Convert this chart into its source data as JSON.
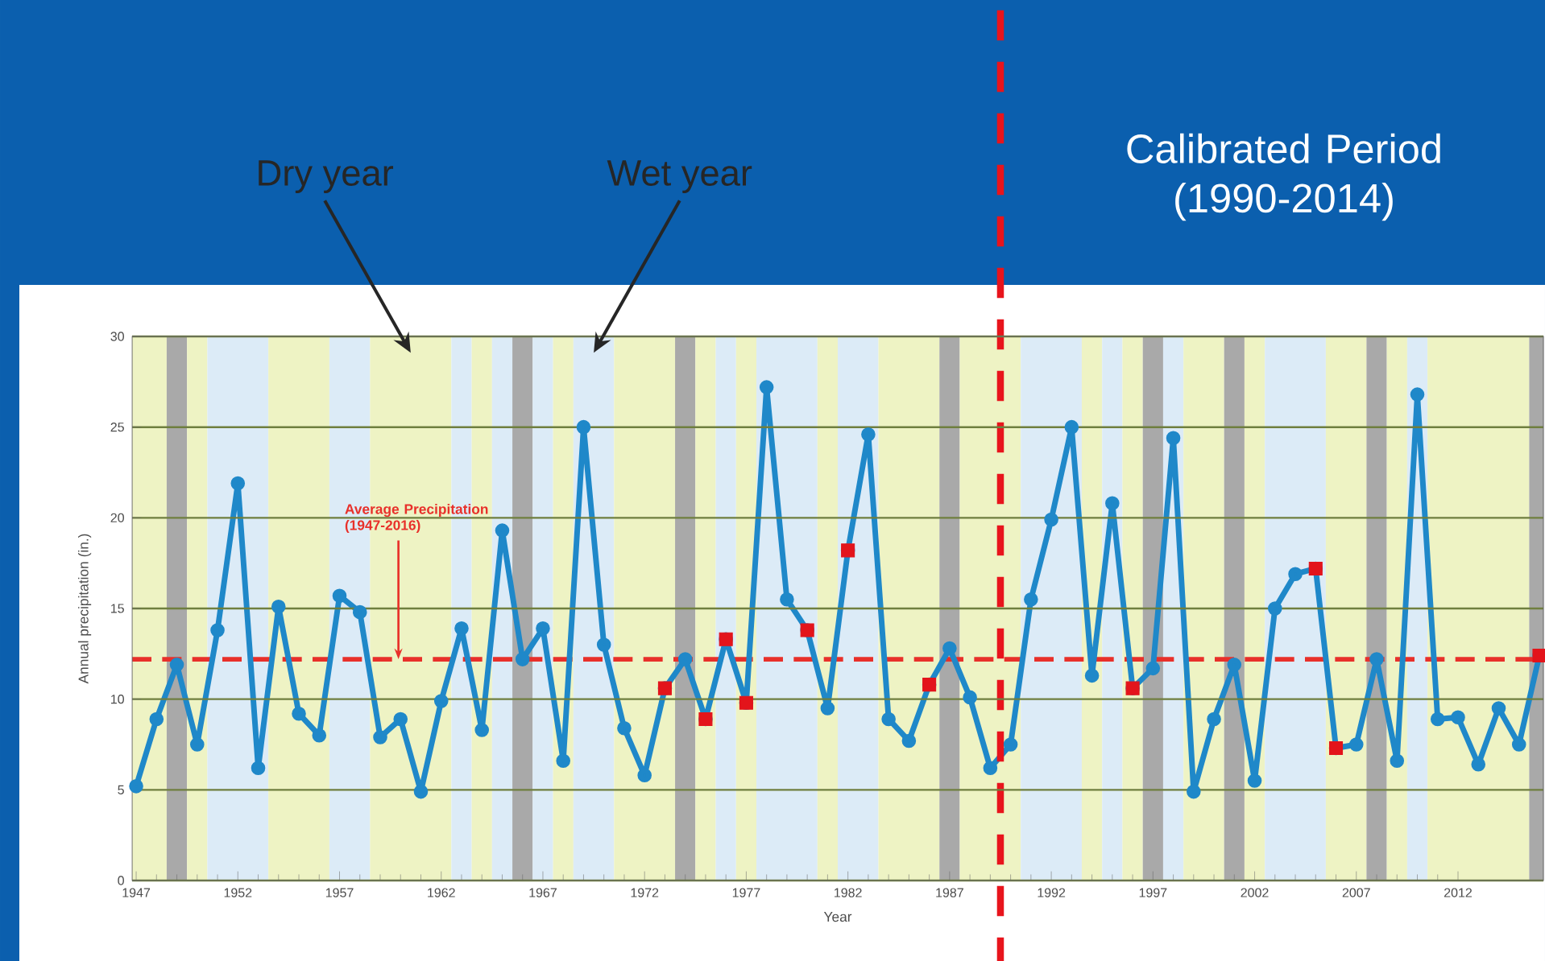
{
  "chart_data": {
    "type": "line",
    "xlabel": "Year",
    "ylabel": "Annual precipitation (in.)",
    "x": [
      1947,
      1948,
      1949,
      1950,
      1951,
      1952,
      1953,
      1954,
      1955,
      1956,
      1957,
      1958,
      1959,
      1960,
      1961,
      1962,
      1963,
      1964,
      1965,
      1966,
      1967,
      1968,
      1969,
      1970,
      1971,
      1972,
      1973,
      1974,
      1975,
      1976,
      1977,
      1978,
      1979,
      1980,
      1981,
      1982,
      1983,
      1984,
      1985,
      1986,
      1987,
      1988,
      1989,
      1990,
      1991,
      1992,
      1993,
      1994,
      1995,
      1996,
      1997,
      1998,
      1999,
      2000,
      2001,
      2002,
      2003,
      2004,
      2005,
      2006,
      2007,
      2008,
      2009,
      2010,
      2011,
      2012,
      2013,
      2014,
      2015,
      2016
    ],
    "series": [
      {
        "color": "#1f88c9",
        "marker": "circle",
        "values": [
          5.2,
          8.9,
          11.9,
          7.5,
          13.8,
          21.9,
          6.2,
          15.1,
          9.2,
          8.0,
          15.7,
          14.8,
          7.9,
          8.9,
          4.9,
          9.9,
          13.9,
          8.3,
          19.3,
          12.2,
          13.9,
          6.6,
          25.0,
          13.0,
          8.4,
          5.8,
          10.6,
          12.2,
          8.9,
          13.3,
          9.8,
          27.2,
          15.5,
          13.8,
          9.5,
          18.2,
          24.6,
          8.9,
          7.7,
          10.8,
          12.8,
          10.1,
          6.2,
          7.5,
          15.5,
          19.9,
          25.0,
          11.3,
          20.8,
          10.6,
          11.7,
          24.4,
          4.9,
          8.9,
          11.9,
          5.5,
          15.0,
          16.9,
          17.2,
          7.3,
          7.5,
          12.2,
          6.6,
          26.8,
          8.9,
          9.0,
          6.4,
          9.5,
          7.5,
          12.4
        ]
      },
      {
        "type": "scatter",
        "color": "#e3141b",
        "marker": "square",
        "x": [
          1973,
          1975,
          1976,
          1977,
          1980,
          1982,
          1986,
          1996,
          2005,
          2006,
          2016
        ],
        "values": [
          10.6,
          8.9,
          13.3,
          9.8,
          13.8,
          18.2,
          10.8,
          10.6,
          17.2,
          7.3,
          12.4
        ]
      }
    ],
    "xlim": [
      1946.8,
      2016.2
    ],
    "ylim": [
      0,
      30
    ],
    "xticks": [
      1947,
      1952,
      1957,
      1962,
      1967,
      1972,
      1977,
      1982,
      1987,
      1992,
      1997,
      2002,
      2007,
      2012
    ],
    "yticks": [
      0,
      5,
      10,
      15,
      20,
      25,
      30
    ],
    "grid": "y",
    "ref_lines": [
      {
        "axis": "y",
        "value": 12.2,
        "label": "Average Precipitation (1947-2016)",
        "color": "#e8302a",
        "line_style": "dashed"
      },
      {
        "axis": "x",
        "value": 1989.5,
        "color": "#e8141c",
        "line_style": "dashed"
      }
    ],
    "bands": [
      {
        "axis": "x",
        "from": 1946.8,
        "to": 1948.5,
        "color": "#eef3c4"
      },
      {
        "axis": "x",
        "from": 1948.5,
        "to": 1949.5,
        "color": "#a9a9a9"
      },
      {
        "axis": "x",
        "from": 1949.5,
        "to": 1950.5,
        "color": "#eef3c4"
      },
      {
        "axis": "x",
        "from": 1950.5,
        "to": 1953.5,
        "color": "#dcebf7"
      },
      {
        "axis": "x",
        "from": 1953.5,
        "to": 1956.5,
        "color": "#eef3c4"
      },
      {
        "axis": "x",
        "from": 1956.5,
        "to": 1958.5,
        "color": "#dcebf7"
      },
      {
        "axis": "x",
        "from": 1958.5,
        "to": 1962.5,
        "color": "#eef3c4",
        "label": "Dry year"
      },
      {
        "axis": "x",
        "from": 1962.5,
        "to": 1963.5,
        "color": "#dcebf7"
      },
      {
        "axis": "x",
        "from": 1963.5,
        "to": 1964.5,
        "color": "#eef3c4"
      },
      {
        "axis": "x",
        "from": 1964.5,
        "to": 1965.5,
        "color": "#dcebf7"
      },
      {
        "axis": "x",
        "from": 1965.5,
        "to": 1966.5,
        "color": "#a9a9a9"
      },
      {
        "axis": "x",
        "from": 1966.5,
        "to": 1967.5,
        "color": "#dcebf7"
      },
      {
        "axis": "x",
        "from": 1967.5,
        "to": 1968.5,
        "color": "#eef3c4"
      },
      {
        "axis": "x",
        "from": 1968.5,
        "to": 1970.5,
        "color": "#dcebf7",
        "label": "Wet year"
      },
      {
        "axis": "x",
        "from": 1970.5,
        "to": 1973.5,
        "color": "#eef3c4"
      },
      {
        "axis": "x",
        "from": 1973.5,
        "to": 1974.5,
        "color": "#a9a9a9"
      },
      {
        "axis": "x",
        "from": 1974.5,
        "to": 1975.5,
        "color": "#eef3c4"
      },
      {
        "axis": "x",
        "from": 1975.5,
        "to": 1976.5,
        "color": "#dcebf7"
      },
      {
        "axis": "x",
        "from": 1976.5,
        "to": 1977.5,
        "color": "#eef3c4"
      },
      {
        "axis": "x",
        "from": 1977.5,
        "to": 1980.5,
        "color": "#dcebf7"
      },
      {
        "axis": "x",
        "from": 1980.5,
        "to": 1981.5,
        "color": "#eef3c4"
      },
      {
        "axis": "x",
        "from": 1981.5,
        "to": 1983.5,
        "color": "#dcebf7"
      },
      {
        "axis": "x",
        "from": 1983.5,
        "to": 1986.5,
        "color": "#eef3c4"
      },
      {
        "axis": "x",
        "from": 1986.5,
        "to": 1987.5,
        "color": "#a9a9a9"
      },
      {
        "axis": "x",
        "from": 1987.5,
        "to": 1990.5,
        "color": "#eef3c4"
      },
      {
        "axis": "x",
        "from": 1990.5,
        "to": 1993.5,
        "color": "#dcebf7"
      },
      {
        "axis": "x",
        "from": 1993.5,
        "to": 1994.5,
        "color": "#eef3c4"
      },
      {
        "axis": "x",
        "from": 1994.5,
        "to": 1995.5,
        "color": "#dcebf7"
      },
      {
        "axis": "x",
        "from": 1995.5,
        "to": 1996.5,
        "color": "#eef3c4"
      },
      {
        "axis": "x",
        "from": 1996.5,
        "to": 1997.5,
        "color": "#a9a9a9"
      },
      {
        "axis": "x",
        "from": 1997.5,
        "to": 1998.5,
        "color": "#dcebf7"
      },
      {
        "axis": "x",
        "from": 1998.5,
        "to": 2000.5,
        "color": "#eef3c4"
      },
      {
        "axis": "x",
        "from": 2000.5,
        "to": 2001.5,
        "color": "#a9a9a9"
      },
      {
        "axis": "x",
        "from": 2001.5,
        "to": 2002.5,
        "color": "#eef3c4"
      },
      {
        "axis": "x",
        "from": 2002.5,
        "to": 2005.5,
        "color": "#dcebf7"
      },
      {
        "axis": "x",
        "from": 2005.5,
        "to": 2007.5,
        "color": "#eef3c4"
      },
      {
        "axis": "x",
        "from": 2007.5,
        "to": 2008.5,
        "color": "#a9a9a9"
      },
      {
        "axis": "x",
        "from": 2008.5,
        "to": 2009.5,
        "color": "#eef3c4"
      },
      {
        "axis": "x",
        "from": 2009.5,
        "to": 2010.5,
        "color": "#dcebf7"
      },
      {
        "axis": "x",
        "from": 2010.5,
        "to": 2015.5,
        "color": "#eef3c4"
      },
      {
        "axis": "x",
        "from": 2015.5,
        "to": 2016.2,
        "color": "#a9a9a9"
      }
    ],
    "annotations": [
      "Calibrated Period (1990-2014)"
    ]
  }
}
